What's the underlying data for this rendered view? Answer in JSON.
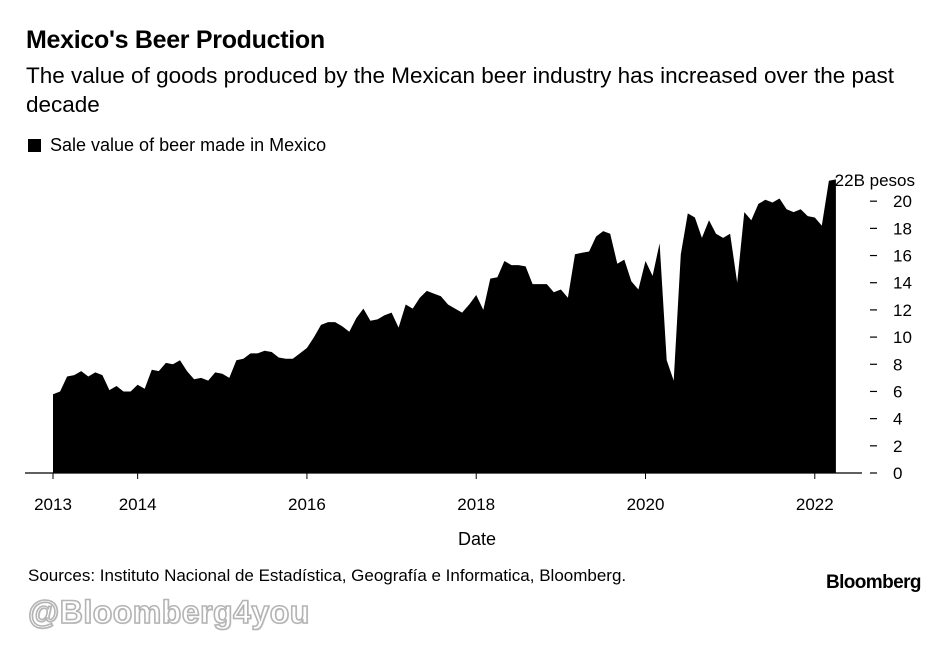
{
  "title": "Mexico's Beer Production",
  "subtitle": "The value of goods produced by the Mexican beer industry has increased over the past decade",
  "legend": {
    "label": "Sale value of beer made in Mexico"
  },
  "footer": {
    "source": "Sources: Instituto Nacional de Estadística, Geografía e Informatica, Bloomberg.",
    "brand": "Bloomberg",
    "watermark": "@Bloomberg4you"
  },
  "colors": {
    "series": "#000000",
    "background": "#ffffff"
  },
  "chart_data": {
    "type": "area",
    "xlabel": "Date",
    "unit_label": "22B pesos",
    "y_axis_position": "right",
    "legend_position": "top-left",
    "grid": false,
    "xlim": [
      "2013-01",
      "2022-05"
    ],
    "ylim": [
      0,
      22
    ],
    "x_ticks": [
      "2013",
      "2014",
      "2016",
      "2018",
      "2020",
      "2022"
    ],
    "y_ticks": [
      0,
      2,
      4,
      6,
      8,
      10,
      12,
      14,
      16,
      18,
      20
    ],
    "series": [
      {
        "name": "Sale value of beer made in Mexico",
        "x": [
          "2013-01",
          "2013-02",
          "2013-03",
          "2013-04",
          "2013-05",
          "2013-06",
          "2013-07",
          "2013-08",
          "2013-09",
          "2013-10",
          "2013-11",
          "2013-12",
          "2014-01",
          "2014-02",
          "2014-03",
          "2014-04",
          "2014-05",
          "2014-06",
          "2014-07",
          "2014-08",
          "2014-09",
          "2014-10",
          "2014-11",
          "2014-12",
          "2015-01",
          "2015-02",
          "2015-03",
          "2015-04",
          "2015-05",
          "2015-06",
          "2015-07",
          "2015-08",
          "2015-09",
          "2015-10",
          "2015-11",
          "2015-12",
          "2016-01",
          "2016-02",
          "2016-03",
          "2016-04",
          "2016-05",
          "2016-06",
          "2016-07",
          "2016-08",
          "2016-09",
          "2016-10",
          "2016-11",
          "2016-12",
          "2017-01",
          "2017-02",
          "2017-03",
          "2017-04",
          "2017-05",
          "2017-06",
          "2017-07",
          "2017-08",
          "2017-09",
          "2017-10",
          "2017-11",
          "2017-12",
          "2018-01",
          "2018-02",
          "2018-03",
          "2018-04",
          "2018-05",
          "2018-06",
          "2018-07",
          "2018-08",
          "2018-09",
          "2018-10",
          "2018-11",
          "2018-12",
          "2019-01",
          "2019-02",
          "2019-03",
          "2019-04",
          "2019-05",
          "2019-06",
          "2019-07",
          "2019-08",
          "2019-09",
          "2019-10",
          "2019-11",
          "2019-12",
          "2020-01",
          "2020-02",
          "2020-03",
          "2020-04",
          "2020-05",
          "2020-06",
          "2020-07",
          "2020-08",
          "2020-09",
          "2020-10",
          "2020-11",
          "2020-12",
          "2021-01",
          "2021-02",
          "2021-03",
          "2021-04",
          "2021-05",
          "2021-06",
          "2021-07",
          "2021-08",
          "2021-09",
          "2021-10",
          "2021-11",
          "2021-12",
          "2022-01",
          "2022-02",
          "2022-03",
          "2022-04"
        ],
        "values": [
          5.8,
          6.0,
          7.1,
          7.2,
          7.5,
          7.1,
          7.4,
          7.2,
          6.1,
          6.4,
          6.0,
          6.0,
          6.5,
          6.2,
          7.6,
          7.5,
          8.1,
          8.0,
          8.3,
          7.5,
          6.9,
          7.0,
          6.8,
          7.4,
          7.3,
          7.0,
          8.3,
          8.4,
          8.8,
          8.8,
          9.0,
          8.9,
          8.5,
          8.4,
          8.4,
          8.8,
          9.2,
          10.0,
          10.9,
          11.1,
          11.1,
          10.8,
          10.4,
          11.4,
          12.1,
          11.2,
          11.3,
          11.6,
          11.8,
          10.7,
          12.4,
          12.1,
          12.9,
          13.4,
          13.2,
          13.0,
          12.4,
          12.1,
          11.8,
          12.4,
          13.1,
          12.0,
          14.3,
          14.4,
          15.6,
          15.3,
          15.3,
          15.2,
          13.9,
          13.9,
          13.9,
          13.3,
          13.5,
          12.9,
          16.1,
          16.2,
          16.3,
          17.4,
          17.8,
          17.6,
          15.4,
          15.7,
          14.1,
          13.5,
          15.6,
          14.5,
          16.9,
          8.3,
          6.8,
          16.1,
          19.1,
          18.8,
          17.3,
          18.6,
          17.6,
          17.3,
          17.6,
          14.0,
          19.2,
          18.6,
          19.8,
          20.1,
          19.9,
          20.2,
          19.4,
          19.2,
          19.4,
          18.9,
          18.8,
          18.2,
          21.5,
          21.6
        ]
      }
    ]
  }
}
